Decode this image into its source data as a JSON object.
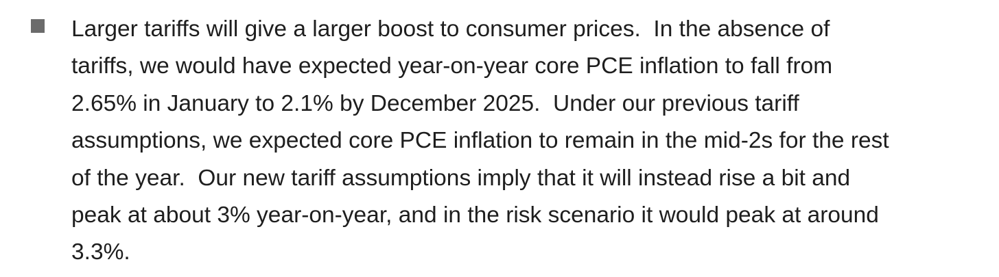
{
  "bullet": {
    "lines": [
      "Larger tariffs will give a larger boost to consumer prices.  In the absence of",
      "tariffs, we would have expected year-on-year core PCE inflation to fall from",
      "2.65% in January to 2.1% by December 2025.  Under our previous tariff",
      "assumptions, we expected core PCE inflation to remain in the mid-2s for the rest",
      "of the year.  Our new tariff assumptions imply that it will instead rise a bit and",
      "peak at about 3% year-on-year, and in the risk scenario it would peak at around",
      "3.3%."
    ]
  }
}
